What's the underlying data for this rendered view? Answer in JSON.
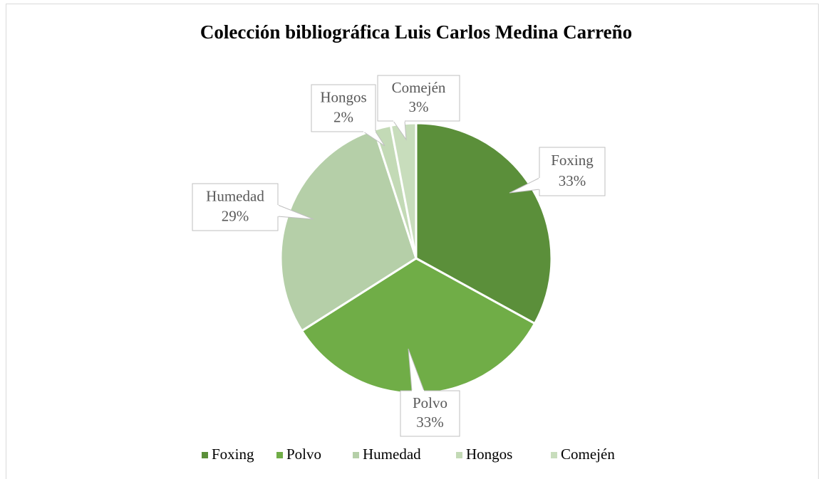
{
  "chart_data": {
    "type": "pie",
    "title": "Colección bibliográfica Luis Carlos Medina Carreño",
    "categories": [
      "Foxing",
      "Polvo",
      "Humedad",
      "Hongos",
      "Comején"
    ],
    "values": [
      33,
      33,
      29,
      2,
      3
    ],
    "value_labels": [
      "33%",
      "33%",
      "29%",
      "2%",
      "3%"
    ],
    "colors": [
      "#5b8f3a",
      "#70ad47",
      "#b5cfa8",
      "#c3dab6",
      "#c8ddbc"
    ],
    "legend": "bottom"
  }
}
